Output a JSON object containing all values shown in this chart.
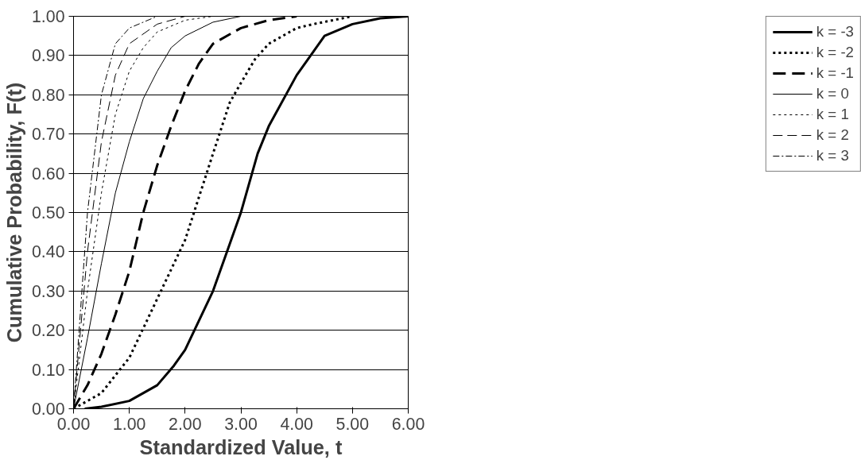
{
  "chart_data": {
    "type": "line",
    "xlabel": "Standardized Value, t",
    "ylabel": "Cumulative Probability, F(t)",
    "xlim": [
      0,
      6
    ],
    "ylim": [
      0,
      1
    ],
    "xticks": [
      {
        "value": 0,
        "label": "0.00"
      },
      {
        "value": 1,
        "label": "1.00"
      },
      {
        "value": 2,
        "label": "2.00"
      },
      {
        "value": 3,
        "label": "3.00"
      },
      {
        "value": 4,
        "label": "4.00"
      },
      {
        "value": 5,
        "label": "5.00"
      },
      {
        "value": 6,
        "label": "6.00"
      }
    ],
    "yticks": [
      {
        "value": 0,
        "label": "0.00"
      },
      {
        "value": 0.1,
        "label": "0.10"
      },
      {
        "value": 0.2,
        "label": "0.20"
      },
      {
        "value": 0.3,
        "label": "0.30"
      },
      {
        "value": 0.4,
        "label": "0.40"
      },
      {
        "value": 0.5,
        "label": "0.50"
      },
      {
        "value": 0.6,
        "label": "0.60"
      },
      {
        "value": 0.7,
        "label": "0.70"
      },
      {
        "value": 0.8,
        "label": "0.80"
      },
      {
        "value": 0.9,
        "label": "0.90"
      },
      {
        "value": 1,
        "label": "1.00"
      }
    ],
    "grid": "y",
    "legend": "right",
    "marker": "none",
    "series": [
      {
        "name": "k = -3",
        "color": "#000000",
        "line_style": "solid",
        "x": [
          0.2,
          0.5,
          1,
          1.5,
          1.8,
          2,
          2.5,
          2.75,
          3,
          3.3,
          3.5,
          4,
          4.2,
          4.5,
          5,
          5.5,
          6
        ],
        "values": [
          0,
          0.005,
          0.02,
          0.06,
          0.11,
          0.15,
          0.3,
          0.4,
          0.5,
          0.65,
          0.72,
          0.85,
          0.89,
          0.95,
          0.98,
          0.995,
          1
        ]
      },
      {
        "name": "k = -2",
        "color": "#000000",
        "line_style": "dotted",
        "x": [
          0,
          0.5,
          1,
          1.2,
          1.5,
          1.8,
          2,
          2.25,
          2.5,
          2.8,
          3,
          3.25,
          3.5,
          4,
          4.3,
          5
        ],
        "values": [
          0,
          0.04,
          0.13,
          0.19,
          0.28,
          0.37,
          0.43,
          0.54,
          0.65,
          0.78,
          0.83,
          0.89,
          0.93,
          0.97,
          0.98,
          1
        ]
      },
      {
        "name": "k = -1",
        "color": "#000000",
        "line_style": "dashed",
        "x": [
          0,
          0.25,
          0.5,
          0.75,
          1,
          1.25,
          1.5,
          1.75,
          2,
          2.25,
          2.5,
          3,
          3.5,
          4
        ],
        "values": [
          0,
          0.06,
          0.14,
          0.24,
          0.35,
          0.5,
          0.62,
          0.72,
          0.81,
          0.88,
          0.93,
          0.97,
          0.99,
          1
        ]
      },
      {
        "name": "k = 0",
        "color": "#000000",
        "line_style": "solid",
        "x": [
          0,
          0.25,
          0.5,
          0.75,
          1,
          1.25,
          1.5,
          1.75,
          2,
          2.5,
          3
        ],
        "values": [
          0,
          0.18,
          0.37,
          0.55,
          0.68,
          0.79,
          0.86,
          0.92,
          0.95,
          0.985,
          1
        ]
      },
      {
        "name": "k = 1",
        "color": "#000000",
        "line_style": "dotted",
        "x": [
          0,
          0.25,
          0.5,
          0.75,
          1,
          1.25,
          1.5,
          2,
          2.5
        ],
        "values": [
          0,
          0.3,
          0.55,
          0.75,
          0.86,
          0.92,
          0.96,
          0.99,
          1
        ]
      },
      {
        "name": "k = 2",
        "color": "#000000",
        "line_style": "dashed",
        "x": [
          0,
          0.25,
          0.5,
          0.75,
          1,
          1.5,
          2
        ],
        "values": [
          0,
          0.4,
          0.68,
          0.85,
          0.93,
          0.98,
          1
        ]
      },
      {
        "name": "k = 3",
        "color": "#000000",
        "line_style": "dashdot",
        "x": [
          0,
          0.25,
          0.5,
          0.75,
          1,
          1.5
        ],
        "values": [
          0,
          0.5,
          0.8,
          0.93,
          0.97,
          1
        ]
      }
    ]
  }
}
